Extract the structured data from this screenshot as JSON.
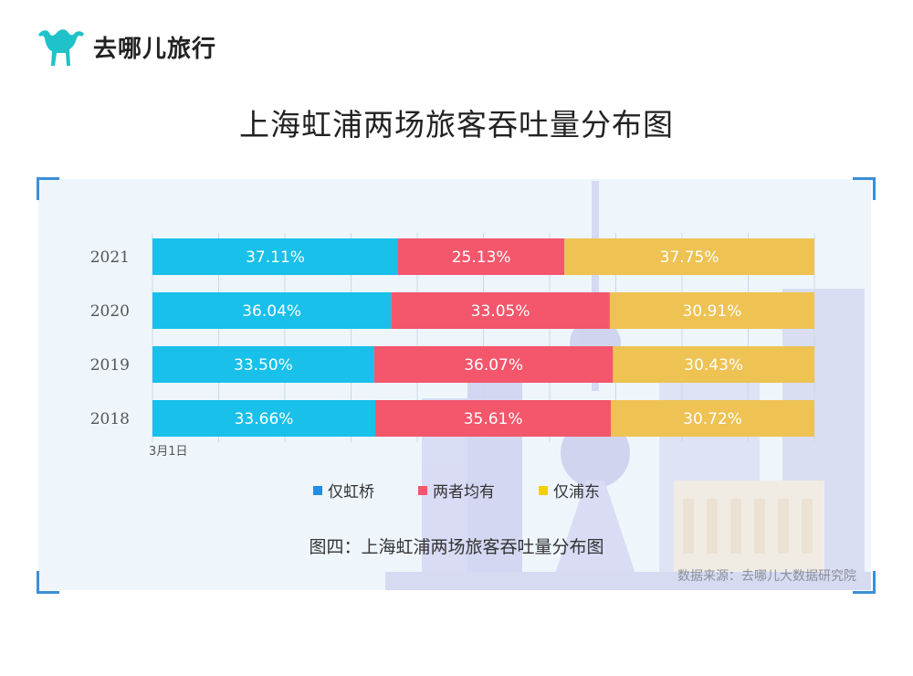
{
  "brand": {
    "name": "去哪儿旅行",
    "color": "#1fc2c9",
    "logo_icon": "camel-icon"
  },
  "page_title": "上海虹浦两场旅客吞吐量分布图",
  "chart_data": {
    "type": "bar",
    "orientation": "horizontal",
    "stacked": true,
    "categories": [
      "2021",
      "2020",
      "2019",
      "2018"
    ],
    "series": [
      {
        "name": "仅虹桥",
        "color": "#18c0ea",
        "values": [
          37.11,
          36.04,
          33.5,
          33.66
        ],
        "labels": [
          "37.11%",
          "36.04%",
          "33.50%",
          "33.66%"
        ]
      },
      {
        "name": "两者均有",
        "color": "#f4566b",
        "values": [
          25.13,
          33.05,
          36.07,
          35.61
        ],
        "labels": [
          "25.13%",
          "33.05%",
          "36.07%",
          "35.61%"
        ]
      },
      {
        "name": "仅浦东",
        "color": "#eec253",
        "values": [
          37.75,
          30.91,
          30.43,
          30.72
        ],
        "labels": [
          "37.75%",
          "30.91%",
          "30.43%",
          "30.72%"
        ]
      }
    ],
    "axis_note": "3月1日",
    "xlim": [
      0,
      100
    ],
    "grid": true,
    "legend_position": "bottom"
  },
  "legend": [
    {
      "label": "仅虹桥",
      "color": "#1f8ee8"
    },
    {
      "label": "两者均有",
      "color": "#f4566b"
    },
    {
      "label": "仅浦东",
      "color": "#f5d000"
    }
  ],
  "caption": "图四：上海虹浦两场旅客吞吐量分布图",
  "source": "数据来源：去哪儿大数据研究院"
}
